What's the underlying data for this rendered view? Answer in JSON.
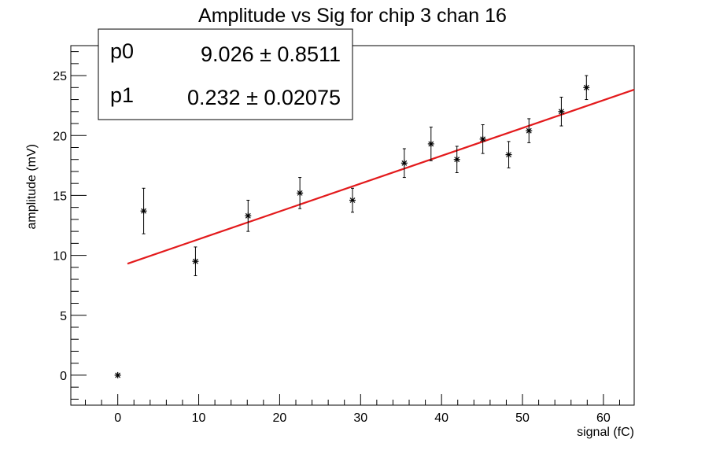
{
  "chart_data": {
    "type": "scatter",
    "title": "Amplitude vs Sig for chip 3 chan 16",
    "xlabel": "signal (fC)",
    "ylabel": "amplitude (mV)",
    "xlim": [
      -5.8,
      63.8
    ],
    "ylim": [
      -2.5,
      27.5
    ],
    "x_ticks": [
      0,
      10,
      20,
      30,
      40,
      50,
      60
    ],
    "y_ticks": [
      0,
      5,
      10,
      15,
      20,
      25
    ],
    "grid": false,
    "legend": "none",
    "series": [
      {
        "marker": "star",
        "color": "#000000",
        "points": [
          {
            "x": 0.0,
            "y": 0.0,
            "err": 0.0
          },
          {
            "x": 3.2,
            "y": 13.7,
            "err": 1.9
          },
          {
            "x": 9.6,
            "y": 9.5,
            "err": 1.2
          },
          {
            "x": 16.1,
            "y": 13.3,
            "err": 1.3
          },
          {
            "x": 22.5,
            "y": 15.2,
            "err": 1.3
          },
          {
            "x": 29.0,
            "y": 14.6,
            "err": 1.0
          },
          {
            "x": 35.4,
            "y": 17.7,
            "err": 1.2
          },
          {
            "x": 38.7,
            "y": 19.3,
            "err": 1.4
          },
          {
            "x": 41.9,
            "y": 18.0,
            "err": 1.1
          },
          {
            "x": 45.1,
            "y": 19.7,
            "err": 1.2
          },
          {
            "x": 48.3,
            "y": 18.4,
            "err": 1.1
          },
          {
            "x": 50.8,
            "y": 20.4,
            "err": 1.0
          },
          {
            "x": 54.8,
            "y": 22.0,
            "err": 1.2
          },
          {
            "x": 57.9,
            "y": 24.0,
            "err": 1.0
          }
        ]
      }
    ],
    "fit": {
      "color": "#e31a1c",
      "p0": 9.026,
      "p1": 0.232,
      "x_range": [
        1.2,
        63.8
      ]
    },
    "stats": {
      "p0_label": "p0",
      "p0_value": "9.026 ± 0.8511",
      "p1_label": "p1",
      "p1_value": "0.232 ± 0.02075"
    }
  }
}
